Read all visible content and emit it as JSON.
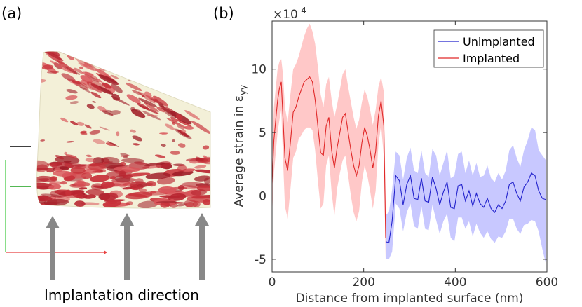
{
  "panel_a": {
    "label": "(a)",
    "caption": "Implantation direction",
    "colors": {
      "volume": "#f3f0d8",
      "strain_regions": "#c8323a",
      "arrow": "#888888",
      "axis_x": "#e84040",
      "axis_y": "#3cc83c"
    }
  },
  "panel_b": {
    "label": "(b)"
  },
  "chart_data": {
    "type": "line",
    "title": "",
    "xlabel": "Distance from implanted surface (nm)",
    "ylabel_main": "Average strain in ε",
    "ylabel_sub": "yy",
    "multiplier_base": "×10",
    "multiplier_exp": "-4",
    "xlim": [
      0,
      600
    ],
    "ylim": [
      -6,
      13.8
    ],
    "xticks": [
      0,
      200,
      400,
      600
    ],
    "xtick_labels": [
      "0",
      "200",
      "400",
      "600"
    ],
    "yticks": [
      -5,
      0,
      5,
      10
    ],
    "ytick_labels": [
      "-5",
      "0",
      "5",
      "10"
    ],
    "legend_position": "top-right",
    "series": [
      {
        "name": "Unimplanted",
        "color": "#2222cc",
        "band_color": "#c8c8ff",
        "x": [
          248,
          255,
          262,
          270,
          278,
          286,
          294,
          302,
          310,
          318,
          326,
          334,
          342,
          350,
          358,
          366,
          374,
          382,
          390,
          398,
          406,
          414,
          422,
          430,
          438,
          446,
          454,
          462,
          470,
          478,
          486,
          494,
          502,
          510,
          518,
          526,
          534,
          542,
          550,
          558,
          566,
          574,
          582,
          590,
          598
        ],
        "y": [
          -3.6,
          -3.7,
          -2.0,
          1.6,
          1.2,
          -0.7,
          0.9,
          1.6,
          -0.2,
          -0.3,
          1.4,
          -0.4,
          -0.5,
          1.5,
          0.6,
          -0.7,
          0.3,
          1.1,
          -0.9,
          -1.0,
          0.8,
          0.9,
          -0.4,
          0.4,
          -0.8,
          0.2,
          -0.6,
          -0.9,
          -0.2,
          -1.0,
          -1.3,
          -0.7,
          -1.0,
          -0.4,
          0.9,
          1.1,
          0.2,
          -0.4,
          0.7,
          1.1,
          1.8,
          1.6,
          0.4,
          -0.2,
          -0.3
        ],
        "upper": [
          -1.5,
          -1.3,
          0.5,
          3.5,
          3.2,
          1.3,
          3.0,
          3.8,
          2.0,
          1.8,
          3.6,
          1.8,
          1.5,
          3.7,
          3.2,
          1.6,
          2.6,
          3.6,
          1.4,
          1.6,
          3.3,
          3.5,
          1.8,
          2.8,
          1.6,
          2.6,
          1.5,
          1.6,
          2.4,
          1.4,
          1.1,
          1.8,
          1.3,
          2.0,
          3.6,
          4.0,
          3.0,
          2.3,
          3.6,
          4.4,
          5.4,
          5.2,
          3.6,
          3.2,
          2.8
        ],
        "lower": [
          -5.0,
          -5.0,
          -4.4,
          -0.6,
          -1.0,
          -2.8,
          -1.3,
          -0.6,
          -2.4,
          -2.6,
          -0.8,
          -2.6,
          -2.7,
          -0.7,
          -1.9,
          -3.0,
          -2.0,
          -1.4,
          -3.3,
          -3.6,
          -1.7,
          -1.7,
          -2.6,
          -2.0,
          -3.2,
          -2.2,
          -2.9,
          -3.3,
          -2.8,
          -3.4,
          -3.7,
          -3.2,
          -3.3,
          -2.8,
          -1.8,
          -1.8,
          -2.6,
          -3.0,
          -2.3,
          -2.2,
          -1.9,
          -2.0,
          -2.8,
          -4.2,
          -5.4
        ]
      },
      {
        "name": "Implanted",
        "color": "#e02828",
        "band_color": "#ffc8c8",
        "x": [
          0,
          4,
          8,
          12,
          16,
          20,
          24,
          28,
          34,
          40,
          46,
          52,
          58,
          64,
          70,
          76,
          82,
          88,
          94,
          100,
          106,
          112,
          118,
          124,
          130,
          136,
          142,
          148,
          154,
          160,
          166,
          172,
          178,
          184,
          190,
          196,
          202,
          208,
          214,
          220,
          226,
          232,
          238,
          244,
          248
        ],
        "y": [
          1.0,
          4.4,
          6.0,
          7.5,
          8.5,
          9.0,
          6.0,
          3.0,
          2.0,
          4.2,
          6.6,
          7.0,
          7.8,
          8.4,
          9.0,
          9.2,
          9.4,
          9.0,
          7.6,
          5.5,
          3.4,
          3.2,
          5.5,
          6.2,
          3.6,
          2.2,
          3.8,
          5.0,
          6.2,
          6.5,
          5.0,
          3.6,
          2.4,
          1.6,
          2.4,
          4.2,
          5.4,
          4.7,
          3.6,
          2.2,
          3.5,
          6.3,
          7.5,
          5.5,
          -3.3
        ],
        "upper": [
          3.0,
          7.0,
          8.5,
          10.0,
          10.6,
          10.8,
          9.5,
          7.0,
          5.8,
          8.0,
          10.0,
          10.4,
          11.0,
          11.8,
          12.6,
          13.2,
          13.6,
          13.0,
          12.0,
          10.2,
          8.0,
          7.0,
          8.8,
          9.4,
          7.6,
          6.2,
          7.2,
          8.4,
          9.6,
          10.0,
          8.6,
          7.4,
          6.2,
          5.3,
          6.0,
          7.4,
          8.4,
          7.8,
          6.8,
          5.6,
          6.8,
          8.6,
          9.4,
          8.2,
          -0.5
        ],
        "lower": [
          -1.5,
          1.8,
          3.4,
          5.0,
          6.0,
          6.8,
          2.8,
          -0.8,
          -1.8,
          0.5,
          3.0,
          3.5,
          4.5,
          4.8,
          5.2,
          5.4,
          5.4,
          5.2,
          3.6,
          1.2,
          -1.0,
          -0.6,
          2.4,
          3.2,
          0.3,
          -1.6,
          0.6,
          1.8,
          2.8,
          3.2,
          1.6,
          0.0,
          -1.3,
          -2.0,
          -1.2,
          1.1,
          2.4,
          1.6,
          0.4,
          -1.0,
          0.4,
          4.0,
          5.6,
          3.0,
          -5.0
        ]
      }
    ]
  }
}
